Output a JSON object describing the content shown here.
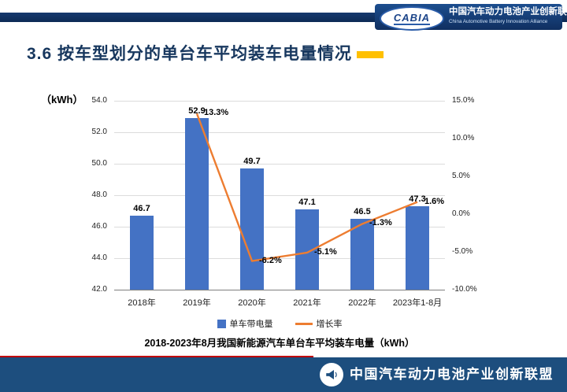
{
  "header": {
    "logo_text": "CABIA",
    "org_cn": "中国汽车动力电池产业创新联盟",
    "org_en": "China Automotive Battery Innovation Alliance"
  },
  "title": "3.6 按车型划分的单台车平均装车电量情况",
  "chart_data": {
    "type": "bar+line",
    "unit_label": "（kWh）",
    "categories": [
      "2018年",
      "2019年",
      "2020年",
      "2021年",
      "2022年",
      "2023年1-8月"
    ],
    "series": [
      {
        "name": "单车带电量",
        "type": "bar",
        "axis": "left",
        "color": "#4472C4",
        "values": [
          46.7,
          52.9,
          49.7,
          47.1,
          46.5,
          47.3
        ]
      },
      {
        "name": "增长率",
        "type": "line",
        "axis": "right",
        "color": "#ED7D31",
        "values": [
          null,
          13.3,
          -6.2,
          -5.1,
          -1.3,
          1.6
        ]
      }
    ],
    "bar_labels": [
      "46.7",
      "52.9",
      "49.7",
      "47.1",
      "46.5",
      "47.3"
    ],
    "line_labels": [
      "13.3%",
      "-6.2%",
      "-5.1%",
      "-1.3%",
      "1.6%"
    ],
    "left_axis": {
      "min": 42,
      "max": 54,
      "step": 2,
      "labels": [
        "42.0",
        "44.0",
        "46.0",
        "48.0",
        "50.0",
        "52.0",
        "54.0"
      ]
    },
    "right_axis": {
      "min": -10,
      "max": 15,
      "step": 5,
      "labels": [
        "-10.0%",
        "-5.0%",
        "0.0%",
        "5.0%",
        "10.0%",
        "15.0%"
      ]
    },
    "grid": true,
    "legend_position": "bottom",
    "caption": "2018-2023年8月我国新能源汽车单台车平均装车电量（kWh）"
  },
  "footer": {
    "org": "中国汽车动力电池产业创新联盟"
  },
  "colors": {
    "bar": "#4472C4",
    "line": "#ED7D31",
    "title_text": "#17375e",
    "title_accent": "#ffc000",
    "header_bar": "#16396e",
    "footer_bar": "#1d4e7e",
    "red_divider": "#c00000"
  }
}
